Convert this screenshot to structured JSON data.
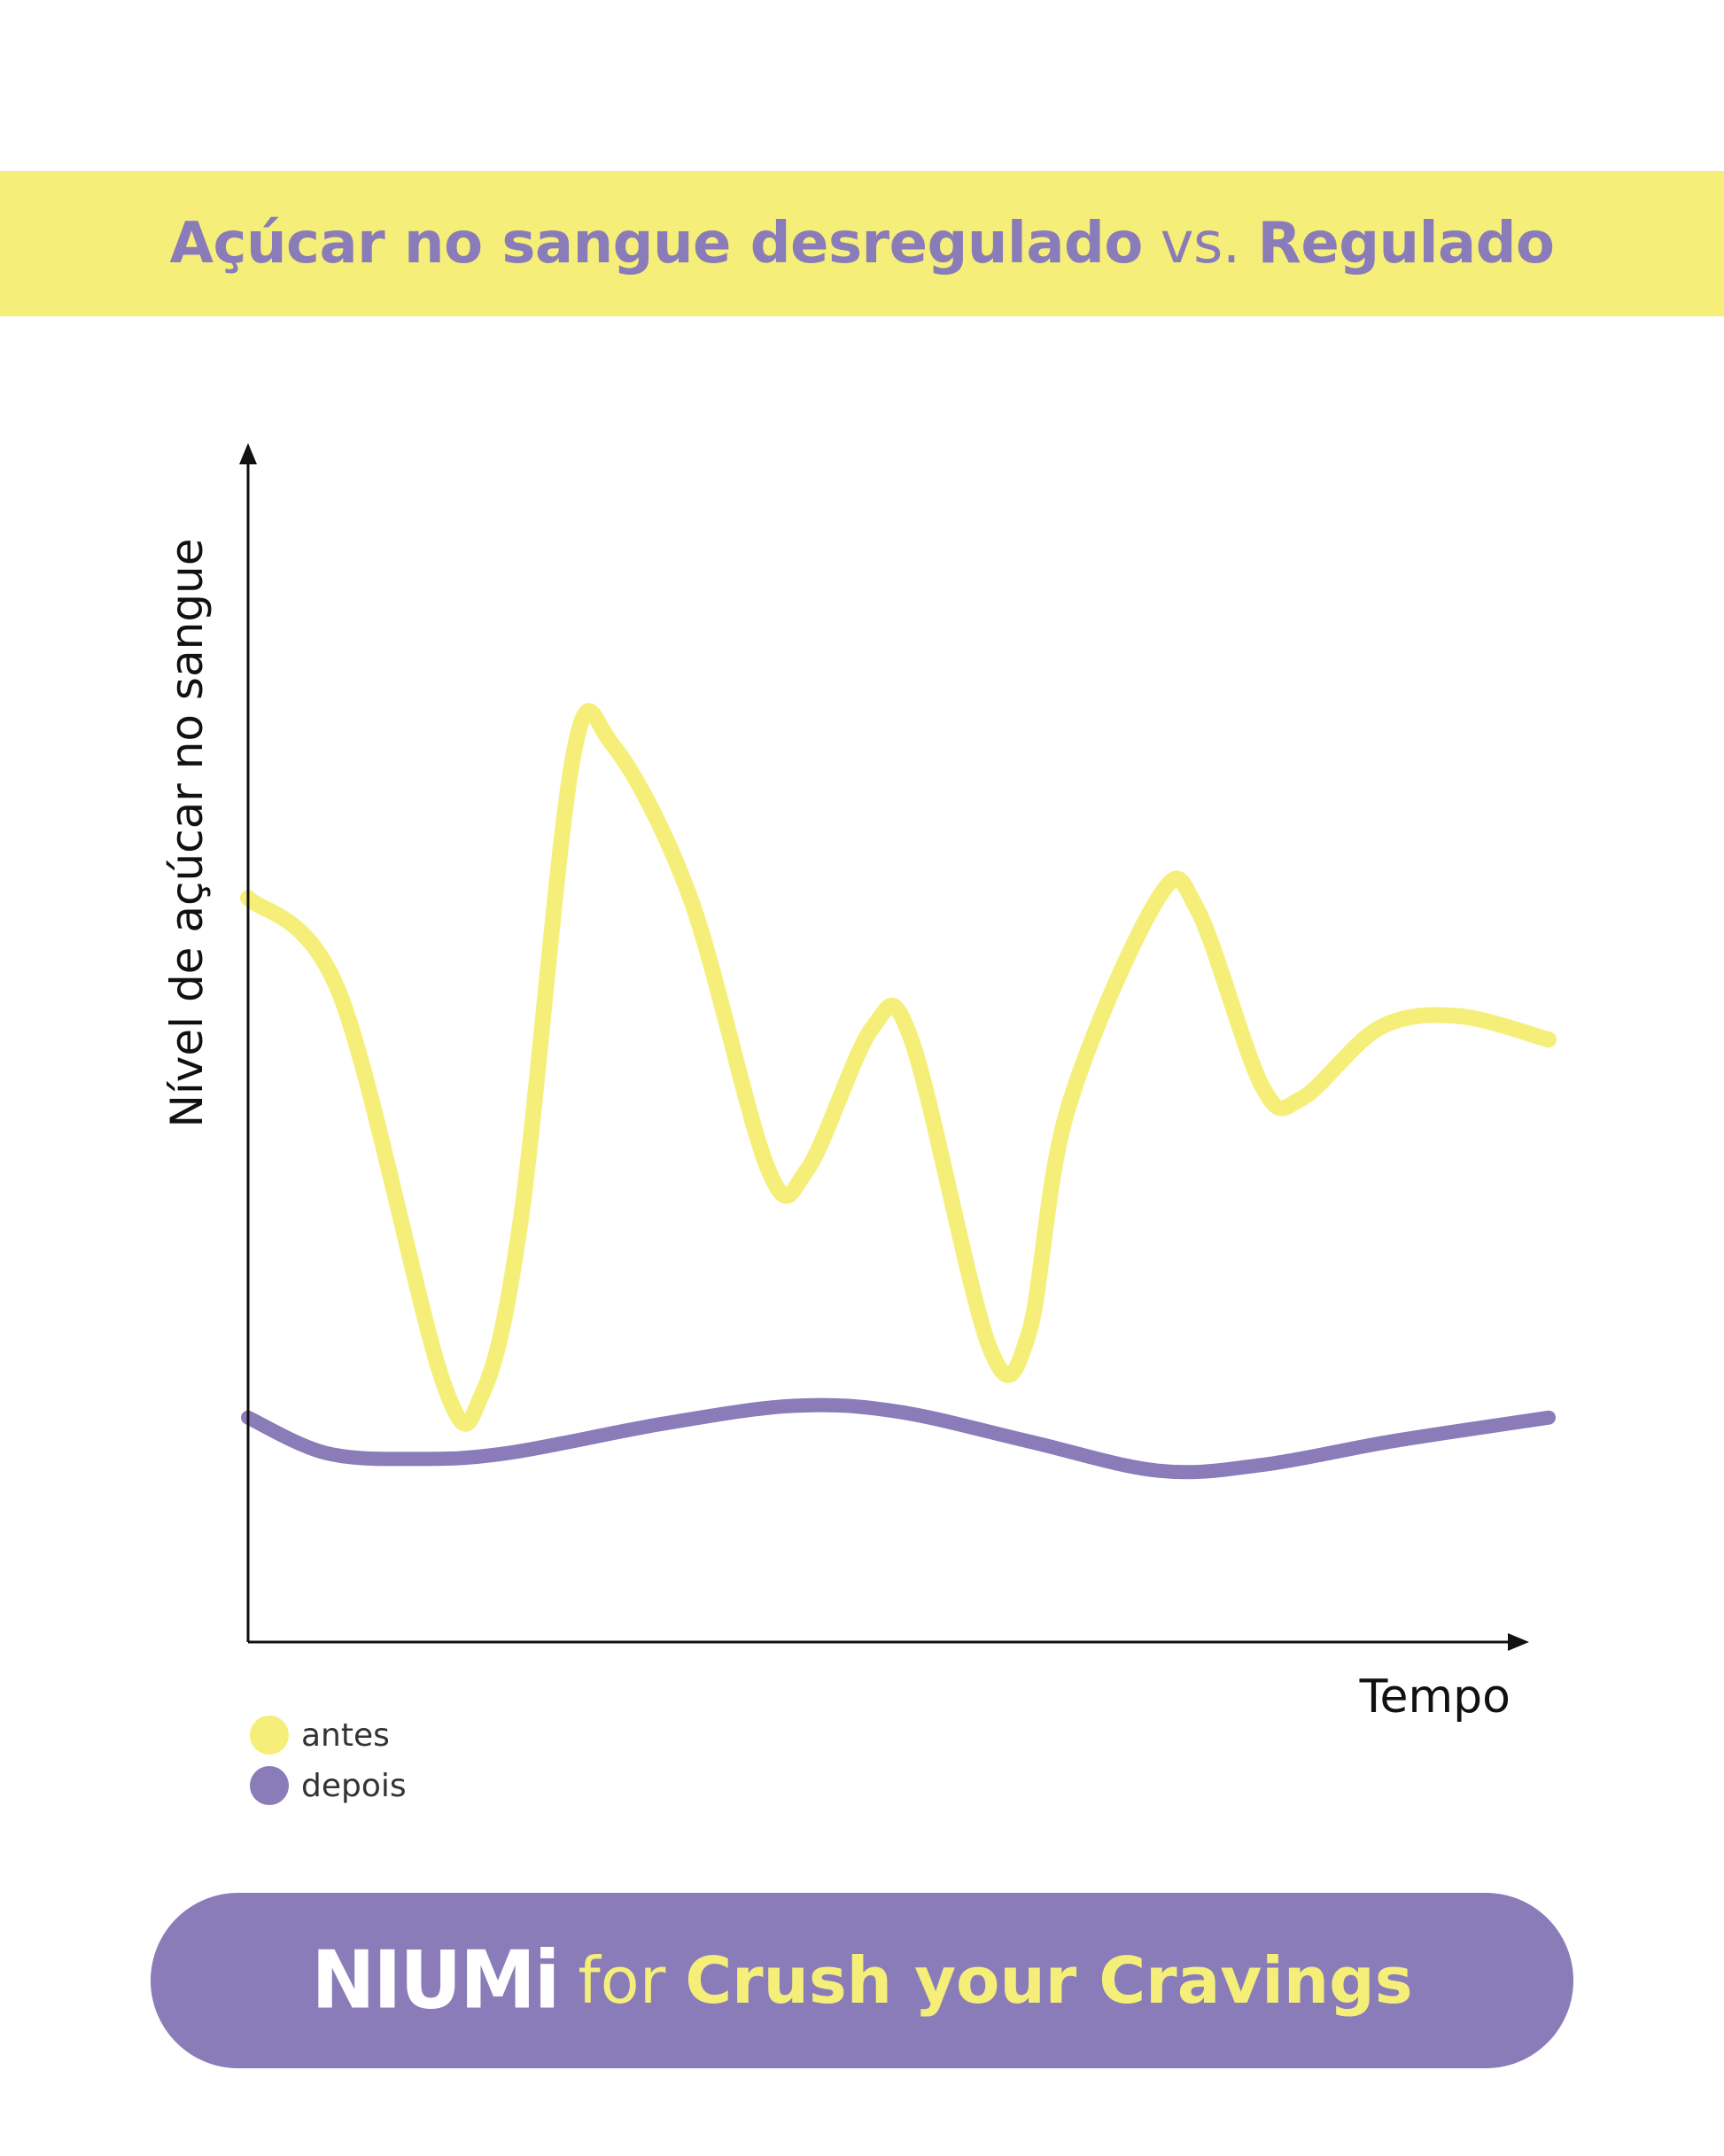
{
  "title": {
    "part1": "Açúcar no sangue desregulado",
    "part2": " vs. ",
    "part3": "Regulado"
  },
  "colors": {
    "yellow": "#f5ef7a",
    "purple": "#8a7cb8",
    "axis": "#111111"
  },
  "chart_data": {
    "type": "line",
    "ylabel": "Nível de açúcar no sangue",
    "xlabel": "Tempo",
    "xlim": [
      0,
      100
    ],
    "ylim": [
      0,
      100
    ],
    "grid": false,
    "legend_position": "bottom-left",
    "series": [
      {
        "name": "antes",
        "color": "#f5ef7a",
        "points": [
          [
            0,
            63
          ],
          [
            7,
            55
          ],
          [
            15,
            22
          ],
          [
            18,
            21
          ],
          [
            21,
            36
          ],
          [
            25,
            75
          ],
          [
            28,
            76
          ],
          [
            34,
            63
          ],
          [
            40,
            40
          ],
          [
            43,
            40
          ],
          [
            48,
            52
          ],
          [
            51,
            51
          ],
          [
            57,
            25
          ],
          [
            60,
            26
          ],
          [
            63,
            45
          ],
          [
            70,
            63
          ],
          [
            73,
            62
          ],
          [
            78,
            47
          ],
          [
            81,
            46
          ],
          [
            87,
            52
          ],
          [
            93,
            53
          ],
          [
            100,
            51
          ]
        ]
      },
      {
        "name": "depois",
        "color": "#8a7cb8",
        "points": [
          [
            0,
            19
          ],
          [
            6,
            16
          ],
          [
            13,
            15.5
          ],
          [
            20,
            16
          ],
          [
            32,
            18.5
          ],
          [
            42,
            20
          ],
          [
            50,
            19.5
          ],
          [
            60,
            17
          ],
          [
            70,
            14.5
          ],
          [
            78,
            15
          ],
          [
            88,
            17
          ],
          [
            100,
            19
          ]
        ]
      }
    ]
  },
  "footer": {
    "logo": "NIUMi",
    "for_text": "for",
    "tagline": "Crush your Cravings"
  }
}
